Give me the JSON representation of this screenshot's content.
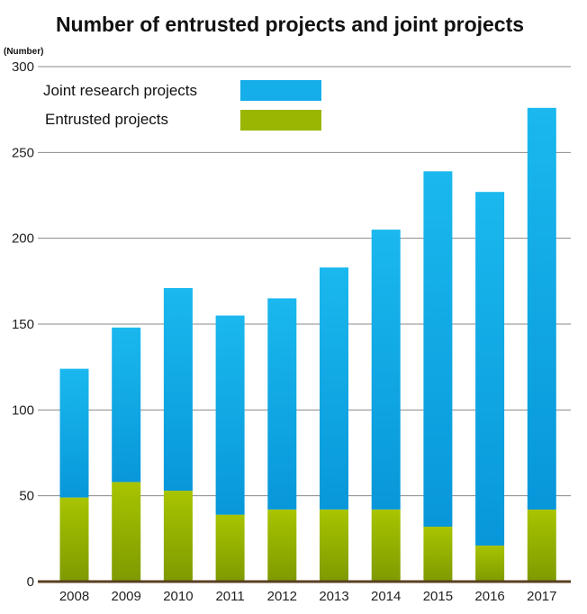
{
  "chart_data": {
    "type": "bar",
    "stacked": true,
    "title": "Number of entrusted projects and joint projects",
    "ylabel": "(Number)",
    "xlabel": "",
    "ylim": [
      0,
      300
    ],
    "yticks": [
      0,
      50,
      100,
      150,
      200,
      250,
      300
    ],
    "grid": true,
    "legend_position": "top-left",
    "categories": [
      "2008",
      "2009",
      "2010",
      "2011",
      "2012",
      "2013",
      "2014",
      "2015",
      "2016",
      "2017"
    ],
    "series": [
      {
        "name": "Entrusted projects",
        "color_top": "#a8c400",
        "color_bottom": "#7e9a00",
        "values": [
          49,
          58,
          53,
          39,
          42,
          42,
          42,
          32,
          21,
          42
        ]
      },
      {
        "name": "Joint research projects",
        "color_top": "#1ab8ee",
        "color_bottom": "#0897da",
        "values": [
          75,
          90,
          118,
          116,
          123,
          141,
          163,
          207,
          206,
          234
        ]
      }
    ],
    "legend": [
      {
        "label": "Joint research projects",
        "color": "#15aeea"
      },
      {
        "label": "Entrusted projects",
        "color": "#9ab600"
      }
    ]
  }
}
